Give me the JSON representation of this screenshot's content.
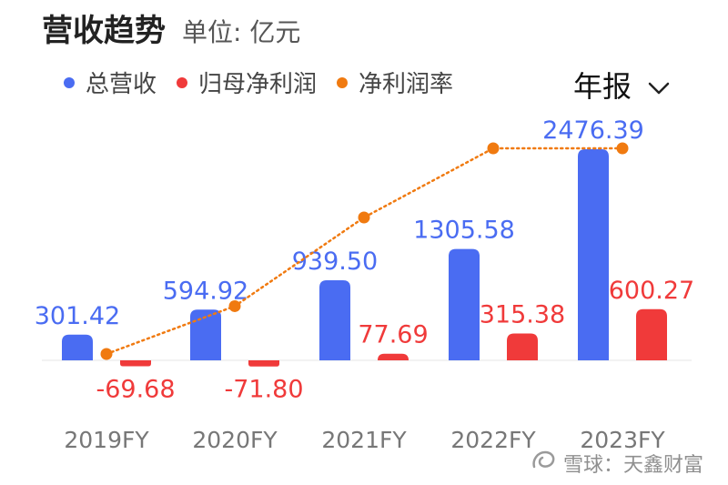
{
  "header": {
    "title": "营收趋势",
    "unit": "单位: 亿元"
  },
  "period_selector": {
    "label": "年报"
  },
  "watermark": {
    "text": "雪球：天鑫财富"
  },
  "colors": {
    "revenue": "#4a6cf2",
    "profit": "#f03a3a",
    "margin": "#f07a10"
  },
  "chart_data": {
    "type": "bar",
    "categories": [
      "2019FY",
      "2020FY",
      "2021FY",
      "2022FY",
      "2023FY"
    ],
    "series": [
      {
        "name": "总营收",
        "type": "bar",
        "values": [
          301.42,
          594.92,
          939.5,
          1305.58,
          2476.39
        ],
        "labels": [
          "301.42",
          "594.92",
          "939.50",
          "1305.58",
          "2476.39"
        ]
      },
      {
        "name": "归母净利润",
        "type": "bar",
        "values": [
          -69.68,
          -71.8,
          77.69,
          315.38,
          600.27
        ],
        "labels": [
          "-69.68",
          "-71.80",
          "77.69",
          "315.38",
          "600.27"
        ]
      },
      {
        "name": "净利润率",
        "type": "line",
        "values": [
          -23.1,
          -12.1,
          8.3,
          24.2,
          24.2
        ]
      }
    ],
    "legend_position": "top-left",
    "grid": false
  }
}
